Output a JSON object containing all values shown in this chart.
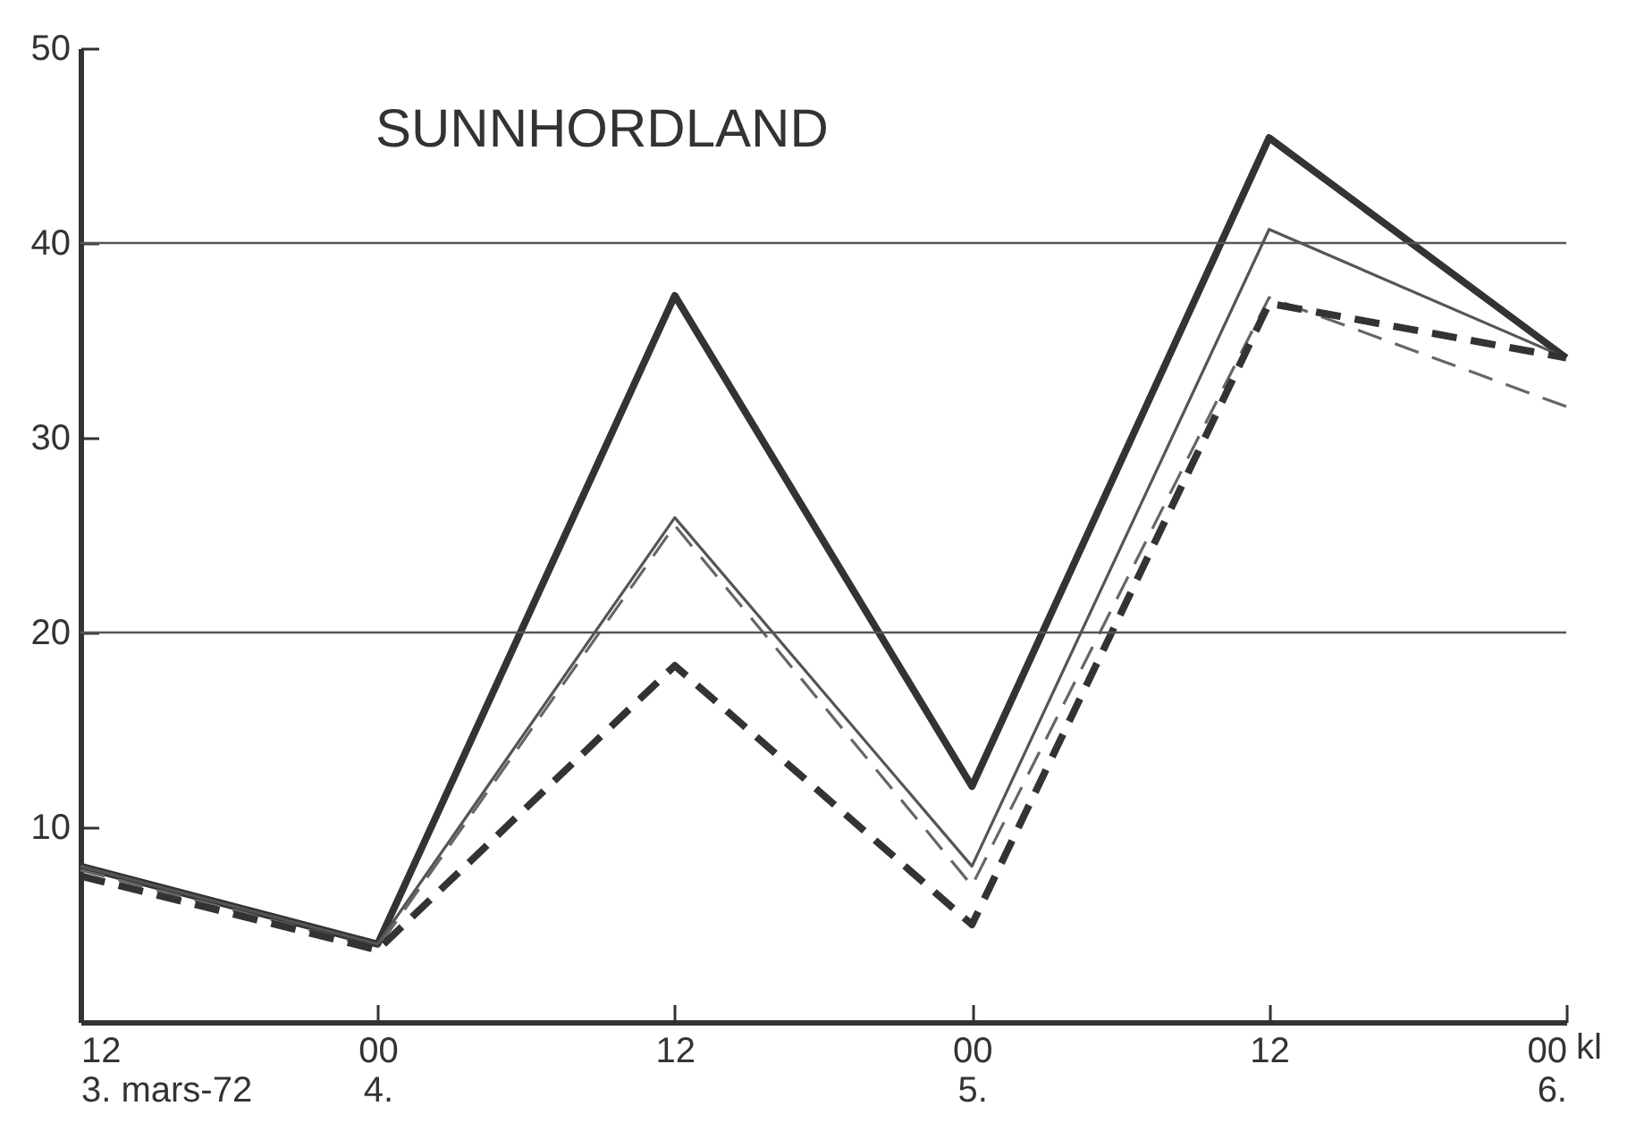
{
  "chart_data": {
    "type": "line",
    "title": "SUNNHORDLAND",
    "xlabel": "kl",
    "x": [
      "1972-03-03T12:00",
      "1972-03-04T00:00",
      "1972-03-04T12:00",
      "1972-03-05T00:00",
      "1972-03-05T12:00",
      "1972-03-06T00:00"
    ],
    "xlim": [
      "1972-03-03T12:00",
      "1972-03-06T00:00"
    ],
    "xticks": [
      {
        "value": "1972-03-03T12:00",
        "label": "12\n3. mars-72"
      },
      {
        "value": "1972-03-04T00:00",
        "label": "00\n4."
      },
      {
        "value": "1972-03-04T12:00",
        "label": "12"
      },
      {
        "value": "1972-03-05T00:00",
        "label": "00\n5."
      },
      {
        "value": "1972-03-05T12:00",
        "label": "12"
      },
      {
        "value": "1972-03-06T00:00",
        "label": "00\n6."
      }
    ],
    "ylim": [
      0,
      50
    ],
    "yticks": [
      10,
      20,
      30,
      40,
      50
    ],
    "ref_lines": [
      {
        "axis": "y",
        "value": 20,
        "color": "#555555"
      },
      {
        "axis": "y",
        "value": 40,
        "color": "#555555"
      }
    ],
    "series": [
      {
        "color": "#333333",
        "line_style": "solid",
        "values": [
          8,
          4,
          37.3,
          12.1,
          45.4,
          34.1
        ]
      },
      {
        "color": "#555555",
        "line_style": "solid",
        "values": [
          8,
          4,
          25.9,
          8,
          40.7,
          34.1
        ]
      },
      {
        "color": "#666666",
        "line_style": "dashed",
        "values": [
          7.8,
          3.8,
          25.5,
          7,
          37.2,
          31.6
        ]
      },
      {
        "color": "#333333",
        "line_style": "dashed",
        "values": [
          7.5,
          3.7,
          18.3,
          5,
          36.9,
          34.1
        ]
      }
    ]
  }
}
